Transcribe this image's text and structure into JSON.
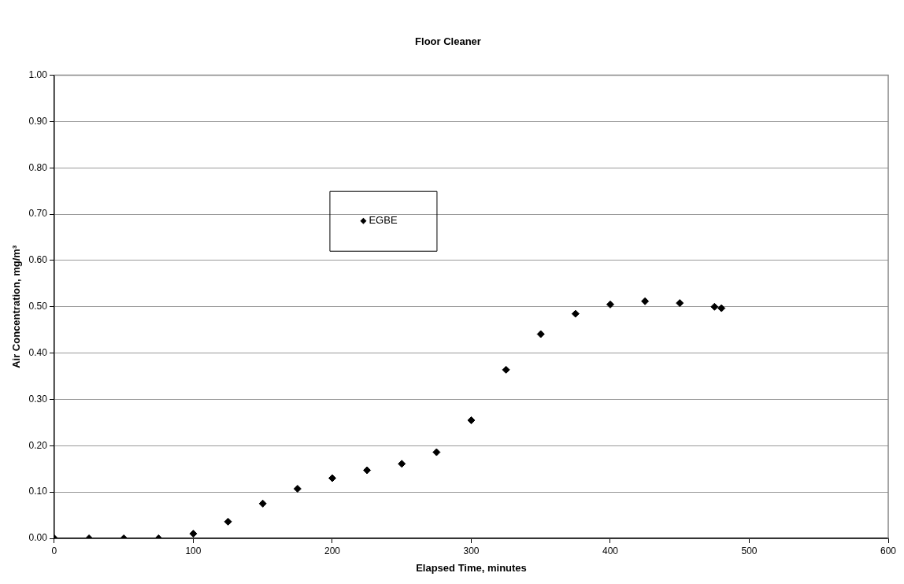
{
  "chart_data": {
    "type": "scatter",
    "title": "Floor Cleaner",
    "xlabel": "Elapsed Time, minutes",
    "ylabel": "Air Concentration, mg/m³",
    "series": [
      {
        "name": "EGBE",
        "color": "#000000",
        "x": [
          0,
          25,
          50,
          75,
          100,
          125,
          150,
          175,
          200,
          225,
          250,
          275,
          300,
          325,
          350,
          375,
          400,
          425,
          450,
          475,
          480
        ],
        "values": [
          0,
          0,
          0,
          0,
          0.01,
          0.036,
          0.075,
          0.107,
          0.13,
          0.147,
          0.161,
          0.186,
          0.255,
          0.364,
          0.441,
          0.485,
          0.505,
          0.512,
          0.508,
          0.5,
          0.497
        ]
      }
    ],
    "xlim": [
      0,
      600
    ],
    "xticks": [
      0,
      100,
      200,
      300,
      400,
      500,
      600
    ],
    "ylim": [
      0,
      1
    ],
    "yticks": [
      {
        "value": 0,
        "label": "0.00"
      },
      {
        "value": 0.1,
        "label": "0.10"
      },
      {
        "value": 0.2,
        "label": "0.20"
      },
      {
        "value": 0.3,
        "label": "0.30"
      },
      {
        "value": 0.4,
        "label": "0.40"
      },
      {
        "value": 0.5,
        "label": "0.50"
      },
      {
        "value": 0.6,
        "label": "0.60"
      },
      {
        "value": 0.7,
        "label": "0.70"
      },
      {
        "value": 0.8,
        "label": "0.80"
      },
      {
        "value": 0.9,
        "label": "0.90"
      },
      {
        "value": 1,
        "label": "1.00"
      }
    ],
    "grid": "y",
    "legend": "top left",
    "marker": "diamond"
  }
}
